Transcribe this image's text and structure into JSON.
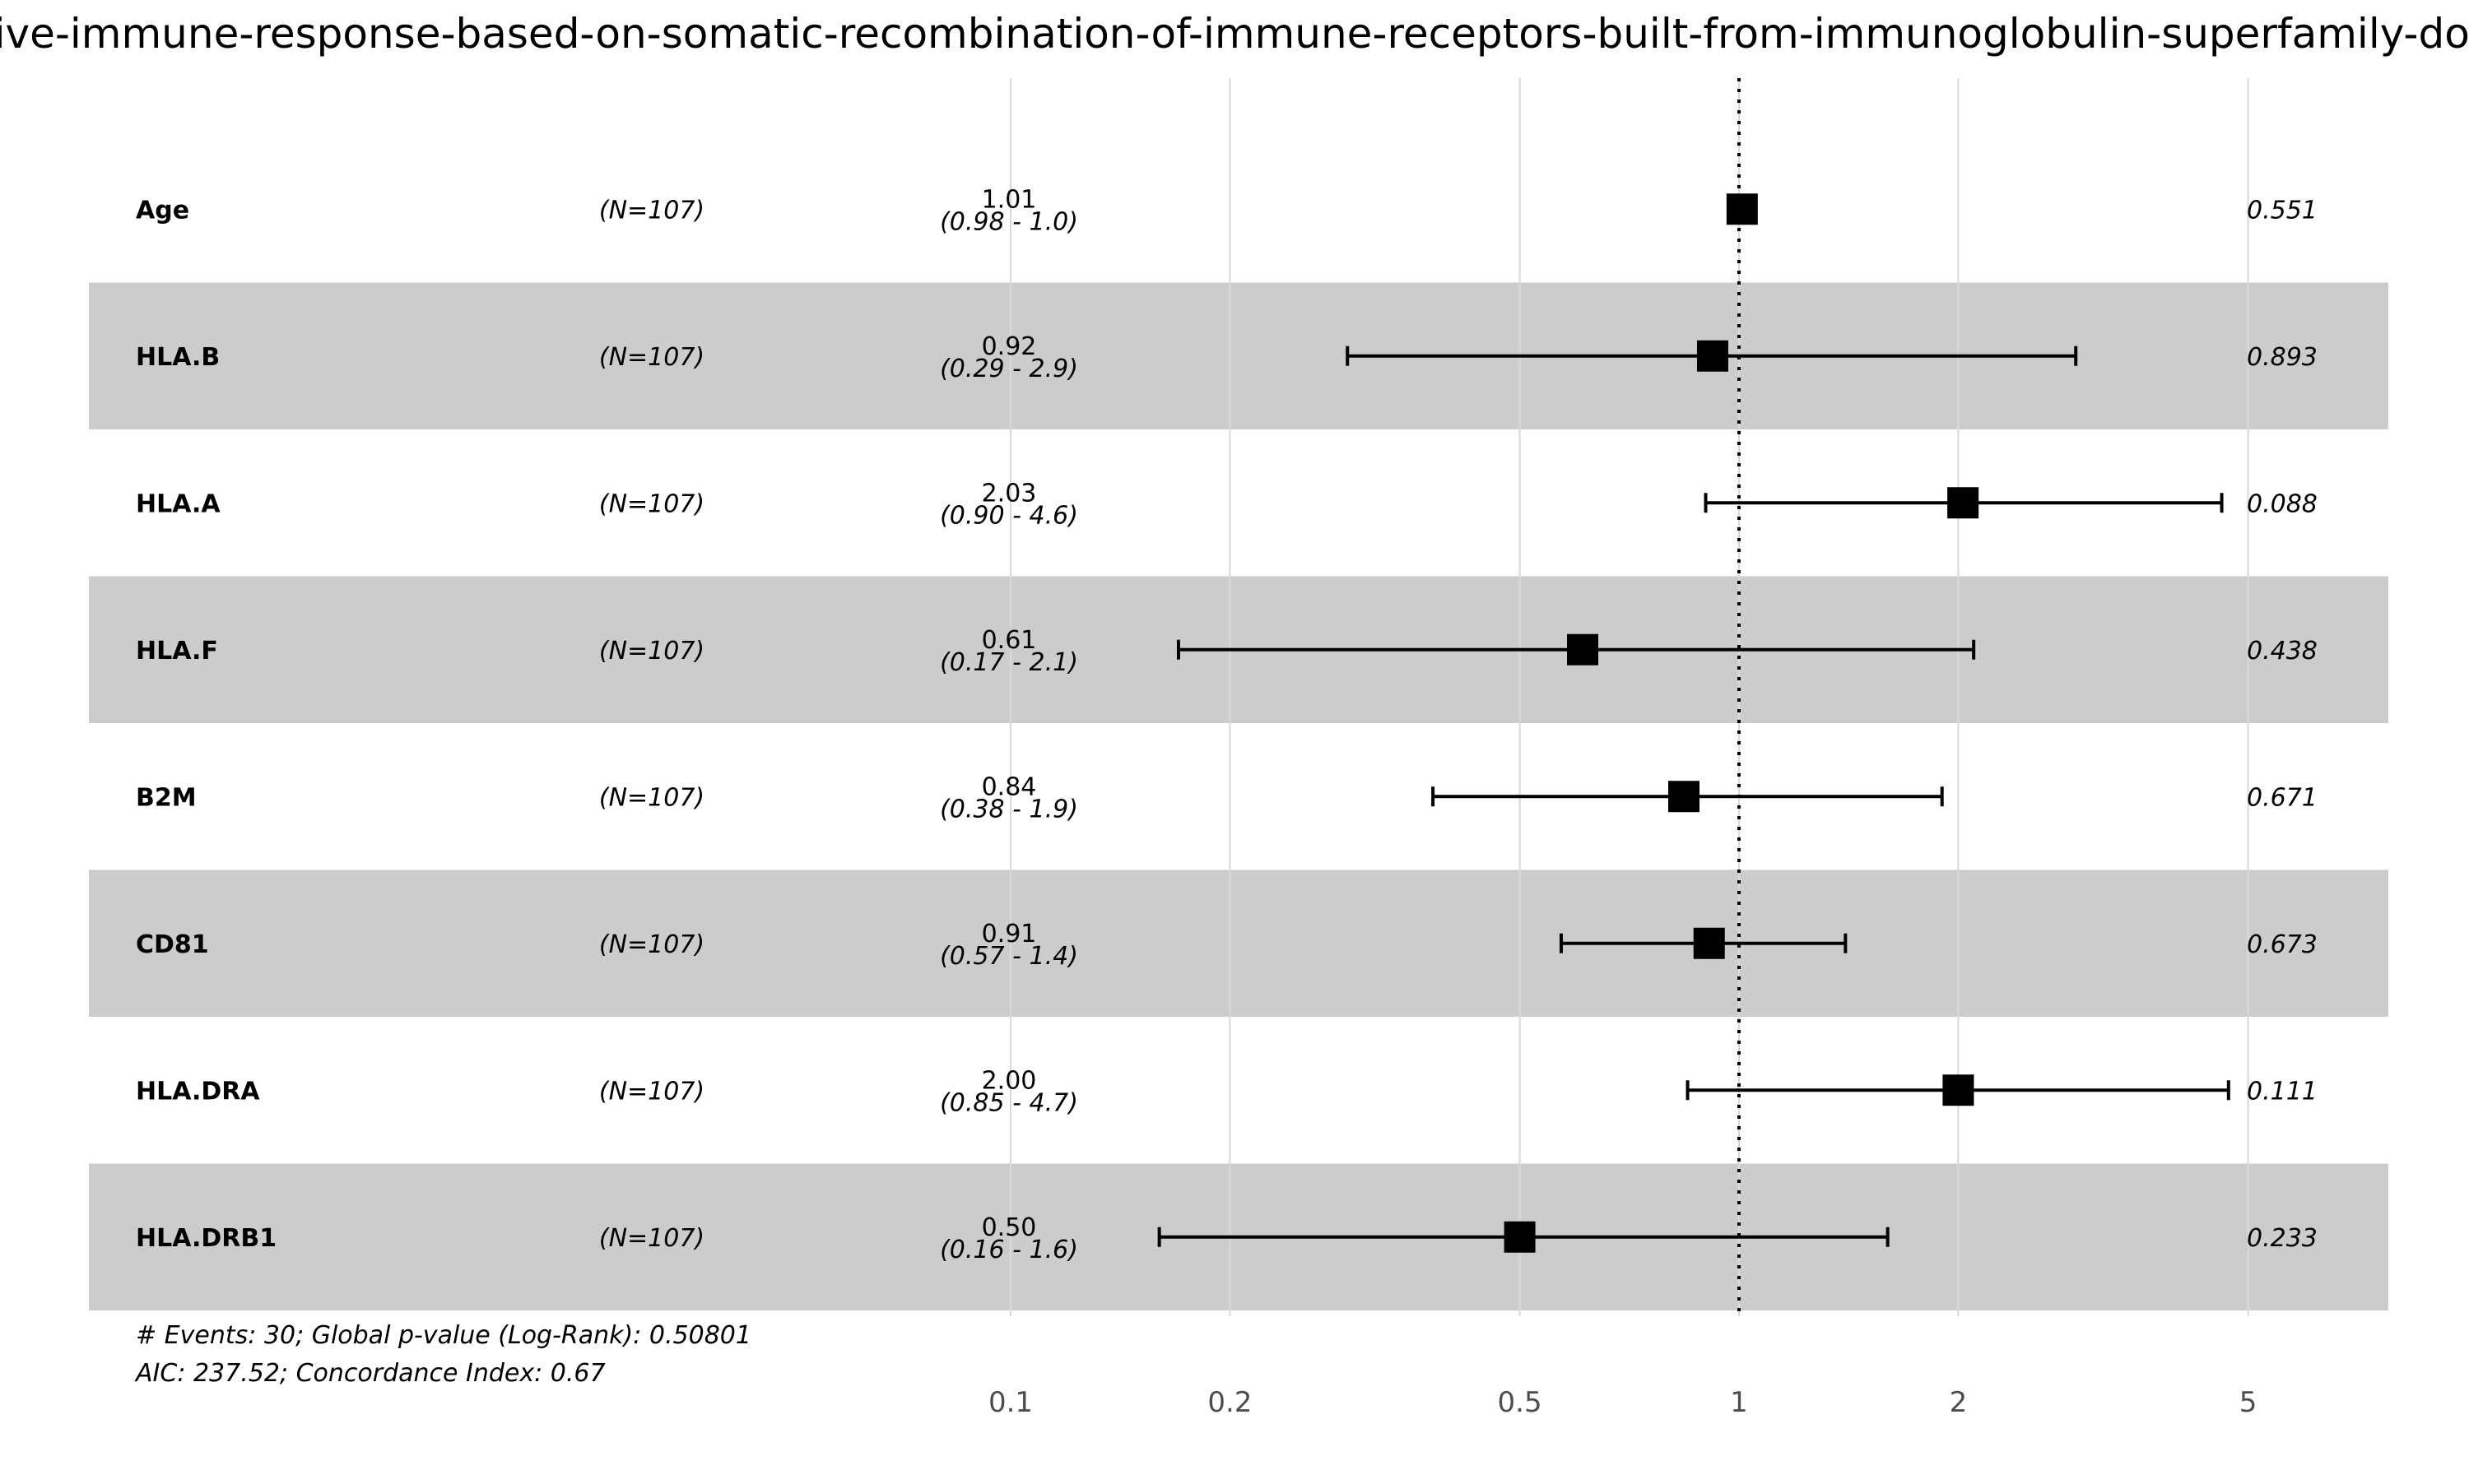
{
  "chart_data": {
    "type": "forest",
    "title": "adaptive-immune-response-based-on-somatic-recombination-of-immune-receptors-built-from-immunoglobulin-superfamily-domains",
    "xscale": "log",
    "xlim": [
      0.1,
      5
    ],
    "x_ticks": [
      "0.1",
      "0.2",
      "0.5",
      "1",
      "2",
      "5"
    ],
    "reference_line": 1,
    "grid": true,
    "rows": [
      {
        "label": "Age",
        "n": "(N=107)",
        "hr": 1.01,
        "lower": 0.98,
        "upper": 1.0,
        "hr_text": "1.01",
        "ci_text": "(0.98 - 1.0)",
        "p": "0.551"
      },
      {
        "label": "HLA.B",
        "n": "(N=107)",
        "hr": 0.92,
        "lower": 0.29,
        "upper": 2.9,
        "hr_text": "0.92",
        "ci_text": "(0.29 - 2.9)",
        "p": "0.893"
      },
      {
        "label": "HLA.A",
        "n": "(N=107)",
        "hr": 2.03,
        "lower": 0.9,
        "upper": 4.6,
        "hr_text": "2.03",
        "ci_text": "(0.90 - 4.6)",
        "p": "0.088"
      },
      {
        "label": "HLA.F",
        "n": "(N=107)",
        "hr": 0.61,
        "lower": 0.17,
        "upper": 2.1,
        "hr_text": "0.61",
        "ci_text": "(0.17 - 2.1)",
        "p": "0.438"
      },
      {
        "label": "B2M",
        "n": "(N=107)",
        "hr": 0.84,
        "lower": 0.38,
        "upper": 1.9,
        "hr_text": "0.84",
        "ci_text": "(0.38 - 1.9)",
        "p": "0.671"
      },
      {
        "label": "CD81",
        "n": "(N=107)",
        "hr": 0.91,
        "lower": 0.57,
        "upper": 1.4,
        "hr_text": "0.91",
        "ci_text": "(0.57 - 1.4)",
        "p": "0.673"
      },
      {
        "label": "HLA.DRA",
        "n": "(N=107)",
        "hr": 2.0,
        "lower": 0.85,
        "upper": 4.7,
        "hr_text": "2.00",
        "ci_text": "(0.85 - 4.7)",
        "p": "0.111"
      },
      {
        "label": "HLA.DRB1",
        "n": "(N=107)",
        "hr": 0.5,
        "lower": 0.16,
        "upper": 1.6,
        "hr_text": "0.50",
        "ci_text": "(0.16 - 1.6)",
        "p": "0.233"
      }
    ],
    "footnote_1": "# Events: 30; Global p-value (Log-Rank): 0.50801",
    "footnote_2": "AIC: 237.52; Concordance Index: 0.67",
    "colors": {
      "band": "#cccccc",
      "grid": "#d9d9d9",
      "mark": "#000000",
      "tick_label": "#4d4d4d"
    }
  }
}
